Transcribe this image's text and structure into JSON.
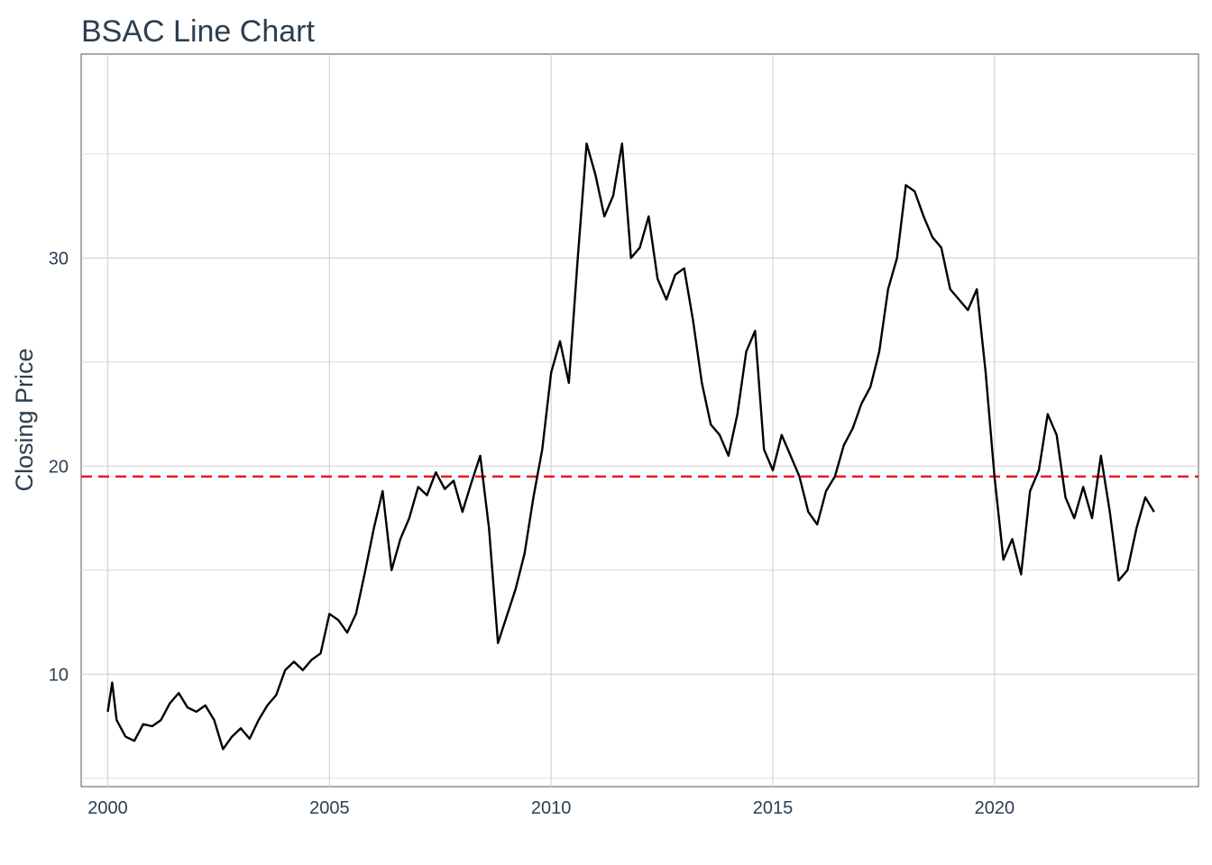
{
  "chart_data": {
    "type": "line",
    "title": "BSAC Line Chart",
    "xlabel": "",
    "ylabel": "Closing Price",
    "x_ticks": [
      "2000",
      "2005",
      "2010",
      "2015",
      "2020"
    ],
    "y_ticks": [
      "10",
      "20",
      "30"
    ],
    "xlim": [
      1999.4,
      2024.6
    ],
    "ylim": [
      4.6,
      39.8
    ],
    "grid": true,
    "reference_line": {
      "y": 19.5,
      "style": "dashed",
      "color": "#e41a1c"
    },
    "series": [
      {
        "color": "#000000",
        "x": [
          2000.0,
          2000.1,
          2000.2,
          2000.4,
          2000.6,
          2000.8,
          2001.0,
          2001.2,
          2001.4,
          2001.6,
          2001.8,
          2002.0,
          2002.2,
          2002.4,
          2002.6,
          2002.8,
          2003.0,
          2003.2,
          2003.4,
          2003.6,
          2003.8,
          2004.0,
          2004.2,
          2004.4,
          2004.6,
          2004.8,
          2005.0,
          2005.2,
          2005.4,
          2005.6,
          2005.8,
          2006.0,
          2006.2,
          2006.4,
          2006.6,
          2006.8,
          2007.0,
          2007.2,
          2007.4,
          2007.6,
          2007.8,
          2008.0,
          2008.2,
          2008.4,
          2008.6,
          2008.8,
          2009.0,
          2009.2,
          2009.4,
          2009.6,
          2009.8,
          2010.0,
          2010.2,
          2010.4,
          2010.6,
          2010.8,
          2011.0,
          2011.2,
          2011.4,
          2011.6,
          2011.8,
          2012.0,
          2012.2,
          2012.4,
          2012.6,
          2012.8,
          2013.0,
          2013.2,
          2013.4,
          2013.6,
          2013.8,
          2014.0,
          2014.2,
          2014.4,
          2014.6,
          2014.8,
          2015.0,
          2015.2,
          2015.4,
          2015.6,
          2015.8,
          2016.0,
          2016.2,
          2016.4,
          2016.6,
          2016.8,
          2017.0,
          2017.2,
          2017.4,
          2017.6,
          2017.8,
          2018.0,
          2018.2,
          2018.4,
          2018.6,
          2018.8,
          2019.0,
          2019.2,
          2019.4,
          2019.6,
          2019.8,
          2020.0,
          2020.2,
          2020.4,
          2020.6,
          2020.8,
          2021.0,
          2021.2,
          2021.4,
          2021.6,
          2021.8,
          2022.0,
          2022.2,
          2022.4,
          2022.6,
          2022.8,
          2023.0,
          2023.2,
          2023.4,
          2023.6
        ],
        "y": [
          8.2,
          9.6,
          7.8,
          7.0,
          6.8,
          7.6,
          7.5,
          7.8,
          8.6,
          9.1,
          8.4,
          8.2,
          8.5,
          7.8,
          6.4,
          7.0,
          7.4,
          6.9,
          7.8,
          8.5,
          9.0,
          10.2,
          10.6,
          10.2,
          10.7,
          11.0,
          12.9,
          12.6,
          12.0,
          12.9,
          14.9,
          17.0,
          18.8,
          15.0,
          16.5,
          17.5,
          19.0,
          18.6,
          19.7,
          18.9,
          19.3,
          17.8,
          19.2,
          20.5,
          17.0,
          11.5,
          12.8,
          14.1,
          15.8,
          18.5,
          20.8,
          24.5,
          26.0,
          24.0,
          30.0,
          35.5,
          34.0,
          32.0,
          33.0,
          35.5,
          30.0,
          30.5,
          32.0,
          29.0,
          28.0,
          29.2,
          29.5,
          27.0,
          24.0,
          22.0,
          21.5,
          20.5,
          22.5,
          25.5,
          26.5,
          20.8,
          19.8,
          21.5,
          20.5,
          19.5,
          17.8,
          17.2,
          18.8,
          19.5,
          21.0,
          21.8,
          23.0,
          23.8,
          25.5,
          28.5,
          30.0,
          33.5,
          33.2,
          32.0,
          31.0,
          30.5,
          28.5,
          28.0,
          27.5,
          28.5,
          24.5,
          19.5,
          15.5,
          16.5,
          14.8,
          18.8,
          19.8,
          22.5,
          21.5,
          18.5,
          17.5,
          19.0,
          17.5,
          20.5,
          17.8,
          14.5,
          15.0,
          17.0,
          18.5,
          17.8
        ]
      }
    ]
  }
}
